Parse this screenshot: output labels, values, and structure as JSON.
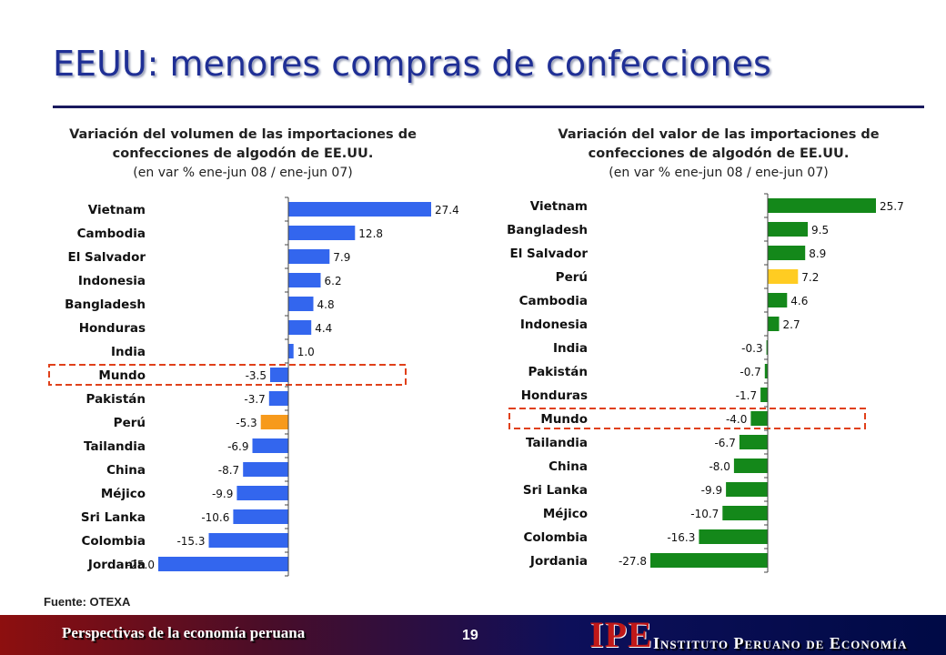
{
  "title": "EEUU: menores compras de confecciones",
  "charts": {
    "left": {
      "title": "Variación del volumen de las importaciones de confecciones de algodón de EE.UU.",
      "subtitle": "(en var % ene-jun 08 / ene-jun 07)"
    },
    "right": {
      "title": "Variación del valor de las importaciones de confecciones de algodón de EE.UU.",
      "subtitle": "(en var % ene-jun 08 / ene-jun 07)"
    }
  },
  "chart_data": [
    {
      "type": "bar",
      "orientation": "horizontal",
      "title": "Variación del volumen de las importaciones de confecciones de algodón de EE.UU.",
      "subtitle": "(en var % ene-jun 08 / ene-jun 07)",
      "categories": [
        "Vietnam",
        "Cambodia",
        "El Salvador",
        "Indonesia",
        "Bangladesh",
        "Honduras",
        "India",
        "Mundo",
        "Pakistán",
        "Perú",
        "Tailandia",
        "China",
        "Méjico",
        "Sri Lanka",
        "Colombia",
        "Jordania"
      ],
      "values": [
        27.4,
        12.8,
        7.9,
        6.2,
        4.8,
        4.4,
        1.0,
        -3.5,
        -3.7,
        -5.3,
        -6.9,
        -8.7,
        -9.9,
        -10.6,
        -15.3,
        -25.0
      ],
      "value_labels": [
        "27.4",
        "12.8",
        "7.9",
        "6.2",
        "4.8",
        "4.4",
        "1.0",
        "-3.5",
        "-3.7",
        "-5.3",
        "-6.9",
        "-8.7",
        "-9.9",
        "-10.6",
        "-15.3",
        "-25.0"
      ],
      "colors": [
        "#3366ee",
        "#3366ee",
        "#3366ee",
        "#3366ee",
        "#3366ee",
        "#3366ee",
        "#3366ee",
        "#3366ee",
        "#3366ee",
        "#f79a1c",
        "#3366ee",
        "#3366ee",
        "#3366ee",
        "#3366ee",
        "#3366ee",
        "#3366ee"
      ],
      "highlighted_category": "Mundo",
      "highlight_color": "#e0401a",
      "xlim": [
        -25.0,
        27.4
      ],
      "grid": false,
      "legend": "none"
    },
    {
      "type": "bar",
      "orientation": "horizontal",
      "title": "Variación del valor de las importaciones de confecciones de algodón de EE.UU.",
      "subtitle": "(en var % ene-jun 08 / ene-jun 07)",
      "categories": [
        "Vietnam",
        "Bangladesh",
        "El Salvador",
        "Perú",
        "Cambodia",
        "Indonesia",
        "India",
        "Pakistán",
        "Honduras",
        "Mundo",
        "Tailandia",
        "China",
        "Sri Lanka",
        "Méjico",
        "Colombia",
        "Jordania"
      ],
      "values": [
        25.7,
        9.5,
        8.9,
        7.2,
        4.6,
        2.7,
        -0.3,
        -0.7,
        -1.7,
        -4.0,
        -6.7,
        -8.0,
        -9.9,
        -10.7,
        -16.3,
        -27.8
      ],
      "value_labels": [
        "25.7",
        "9.5",
        "8.9",
        "7.2",
        "4.6",
        "2.7",
        "-0.3",
        "-0.7",
        "-1.7",
        "-4.0",
        "-6.7",
        "-8.0",
        "-9.9",
        "-10.7",
        "-16.3",
        "-27.8"
      ],
      "colors": [
        "#14881a",
        "#14881a",
        "#14881a",
        "#ffcc22",
        "#14881a",
        "#14881a",
        "#14881a",
        "#14881a",
        "#14881a",
        "#14881a",
        "#14881a",
        "#14881a",
        "#14881a",
        "#14881a",
        "#14881a",
        "#14881a"
      ],
      "highlighted_category": "Mundo",
      "highlight_color": "#e0401a",
      "xlim": [
        -27.8,
        25.7
      ],
      "grid": false,
      "legend": "none"
    }
  ],
  "source": "Fuente: OTEXA",
  "footer": {
    "left_text": "Perspectivas de la economía peruana",
    "page_number": "19",
    "logo": "IPE",
    "logo_name": "Instituto Peruano de Economía"
  }
}
